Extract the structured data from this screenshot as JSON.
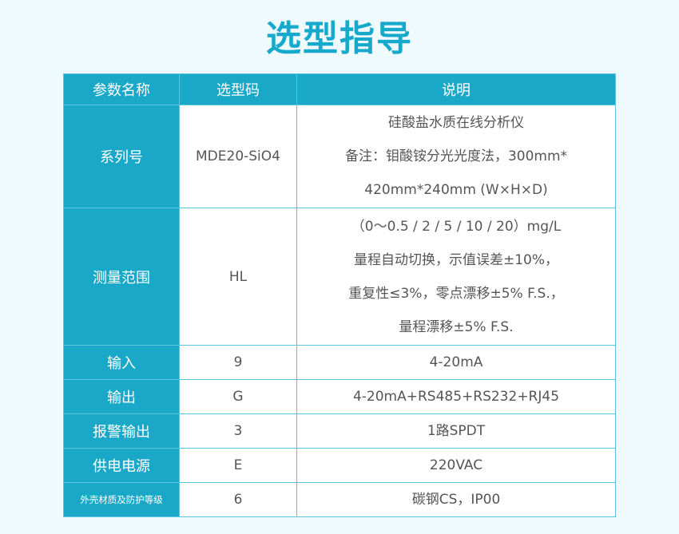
{
  "title": "选型指导",
  "headers": [
    "参数名称",
    "选型码",
    "说明"
  ],
  "rows": [
    {
      "name": "系列号",
      "code": "MDE20-SiO4",
      "desc": [
        "硅酸盐水质在线分析仪",
        "备注：钼酸铵分光光度法，300mm*",
        "420mm*240mm (W×H×D)"
      ]
    },
    {
      "name": "测量范围",
      "code": "HL",
      "desc": [
        "（0～0.5 / 2 / 5 / 10 / 20）mg/L",
        "量程自动切换，示值误差±10%，",
        "重复性≤3%，零点漂移±5% F.S.，",
        "量程漂移±5% F.S."
      ]
    },
    {
      "name": "输入",
      "code": "9",
      "desc": [
        "4-20mA"
      ]
    },
    {
      "name": "输出",
      "code": "G",
      "desc": [
        "4-20mA+RS485+RS232+RJ45"
      ]
    },
    {
      "name": "报警输出",
      "code": "3",
      "desc": [
        "1路SPDT"
      ]
    },
    {
      "name": "供电电源",
      "code": "E",
      "desc": [
        "220VAC"
      ]
    },
    {
      "name": "外壳材质及防护等级",
      "code": "6",
      "desc": [
        "碳钢CS，IP00"
      ]
    }
  ],
  "colors": {
    "accent": "#1aa8c8",
    "background": "#eefafd"
  }
}
